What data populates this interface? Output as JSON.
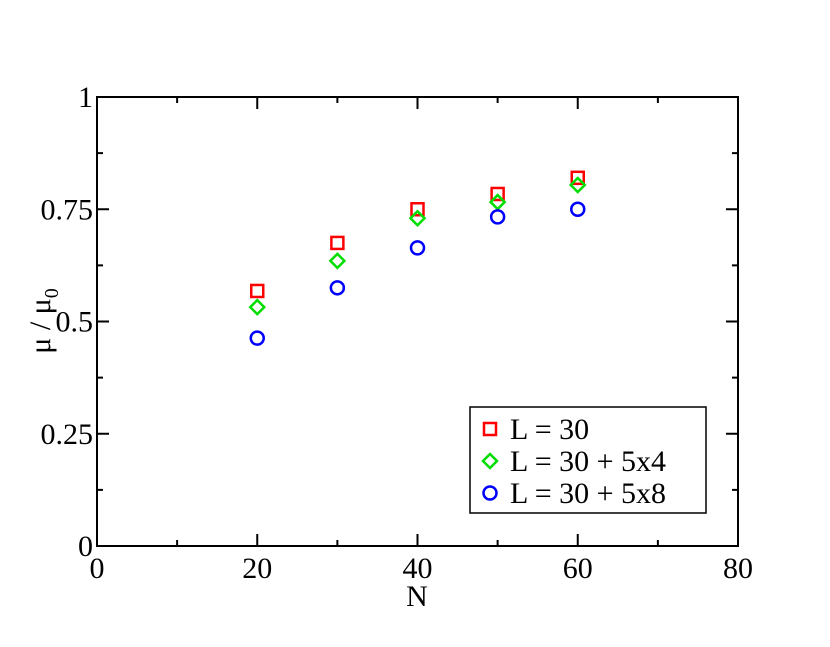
{
  "chart_data": {
    "type": "scatter",
    "xlabel": "N",
    "ylabel": "μ / μ",
    "ylabel_subscript": "0",
    "xlim": [
      0,
      80
    ],
    "ylim": [
      0,
      1
    ],
    "xticks": [
      0,
      20,
      40,
      60,
      80
    ],
    "yticks": [
      0,
      0.25,
      0.5,
      0.75,
      1
    ],
    "xminorticks": [
      10,
      30,
      50,
      70
    ],
    "yminorticks": [
      0.125,
      0.375,
      0.625,
      0.875
    ],
    "legend": "lower right",
    "series": [
      {
        "name": "L = 30",
        "color": "#ff0000",
        "marker": "square",
        "x": [
          20,
          30,
          40,
          50,
          60
        ],
        "values": [
          0.568,
          0.675,
          0.75,
          0.784,
          0.82
        ]
      },
      {
        "name": "L = 30 + 5x4",
        "color": "#00dd00",
        "marker": "diamond",
        "x": [
          20,
          30,
          40,
          50,
          60
        ],
        "values": [
          0.532,
          0.635,
          0.73,
          0.766,
          0.804
        ]
      },
      {
        "name": "L = 30 + 5x8",
        "color": "#0000ff",
        "marker": "circle",
        "x": [
          20,
          30,
          40,
          50,
          60
        ],
        "values": [
          0.463,
          0.575,
          0.664,
          0.733,
          0.75
        ]
      }
    ]
  }
}
